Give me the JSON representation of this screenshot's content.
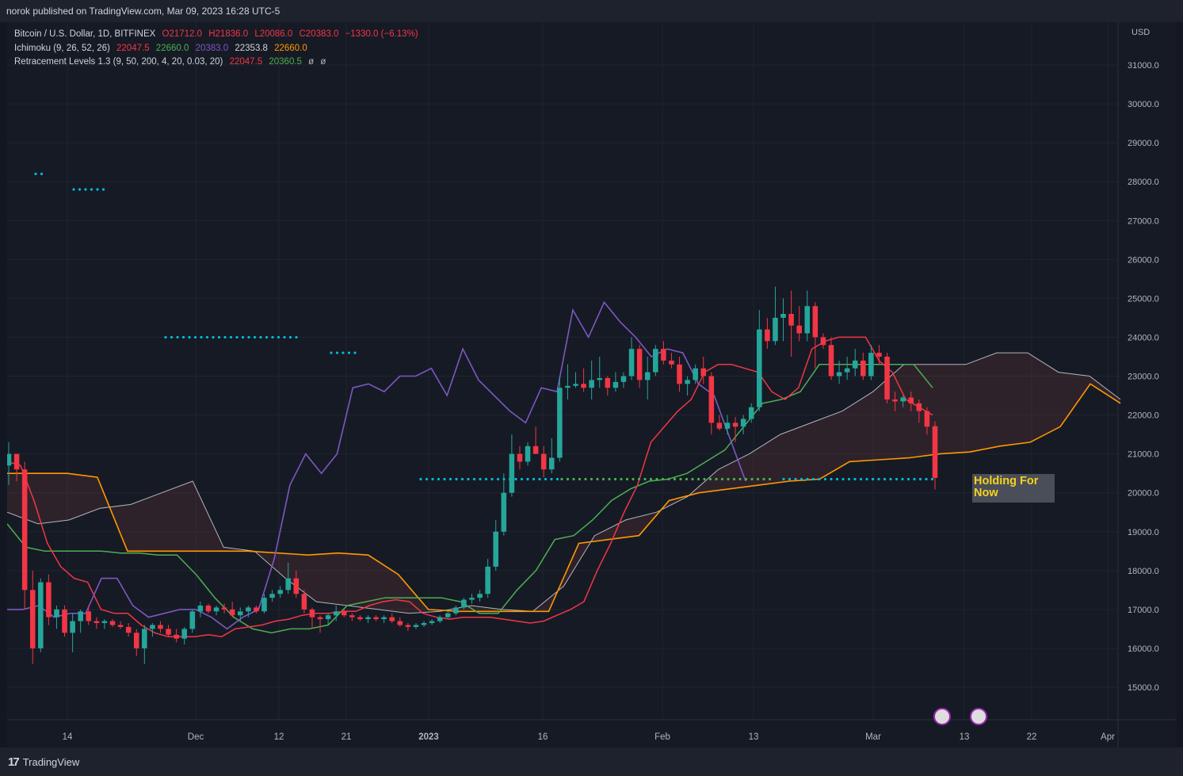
{
  "header": {
    "published_line": "norok published on TradingView.com, Mar 09, 2023 16:28 UTC-5"
  },
  "legend": {
    "symbol": "Bitcoin / U.S. Dollar, 1D, BITFINEX",
    "open": "O21712.0",
    "high": "H21836.0",
    "low": "L20086.0",
    "close": "C20383.0",
    "change": "−1330.0 (−6.13%)",
    "ichimoku_label": "Ichimoku (9, 26, 52, 26)",
    "ichimoku_v1": "22047.5",
    "ichimoku_v2": "22660.0",
    "ichimoku_v3": "20383.0",
    "ichimoku_v4": "22353.8",
    "ichimoku_v5": "22660.0",
    "retr_label": "Retracement Levels 1.3 (9, 50, 200, 4, 20, 0.03, 20)",
    "retr_v1": "22047.5",
    "retr_v2": "20360.5",
    "retr_v3": "ø",
    "retr_v4": "ø"
  },
  "annotation": {
    "text_line1": "Holding For",
    "text_line2": "Now"
  },
  "footer": {
    "brand": "TradingView"
  },
  "chart_data": {
    "type": "candlestick",
    "currency": "USD",
    "y_axis_ticks": [
      "31000.0",
      "30000.0",
      "29000.0",
      "28000.0",
      "27000.0",
      "26000.0",
      "25000.0",
      "24000.0",
      "23000.0",
      "22000.0",
      "21000.0",
      "20000.0",
      "19000.0",
      "18000.0",
      "17000.0",
      "16000.0",
      "15000.0"
    ],
    "x_axis_ticks": [
      "14",
      "Dec",
      "12",
      "21",
      "2023",
      "16",
      "Feb",
      "13",
      "Mar",
      "13",
      "22",
      "Apr"
    ],
    "ylim": [
      14300,
      31900
    ],
    "colors": {
      "up": "#26a69a",
      "down": "#f23645",
      "tenkan": "#f23645",
      "kijun": "#4caf50",
      "chikou": "#7e57c2",
      "senkou_a": "#b2b5be",
      "senkou_b": "#ff9800",
      "retracement_dots": "#00bcd4",
      "retracement_dots_green": "#4caf50"
    },
    "candles_ohlc": [
      [
        20700,
        21300,
        20200,
        21000
      ],
      [
        21000,
        21000,
        20300,
        20600
      ],
      [
        20600,
        20800,
        17000,
        17500
      ],
      [
        17500,
        18000,
        15600,
        16000
      ],
      [
        16000,
        17800,
        15900,
        17700
      ],
      [
        17700,
        17900,
        16600,
        16800
      ],
      [
        16800,
        17100,
        16500,
        17000
      ],
      [
        17000,
        17100,
        16300,
        16400
      ],
      [
        16400,
        16900,
        15900,
        16700
      ],
      [
        16700,
        17000,
        16400,
        16950
      ],
      [
        16950,
        17100,
        16600,
        16700
      ],
      [
        16700,
        16800,
        16500,
        16650
      ],
      [
        16650,
        16750,
        16500,
        16700
      ],
      [
        16700,
        16750,
        16550,
        16600
      ],
      [
        16600,
        16700,
        16500,
        16550
      ],
      [
        16550,
        16650,
        16300,
        16400
      ],
      [
        16400,
        16500,
        15800,
        16000
      ],
      [
        16000,
        16600,
        15600,
        16500
      ],
      [
        16500,
        16650,
        16300,
        16600
      ],
      [
        16600,
        16700,
        16400,
        16500
      ],
      [
        16500,
        16600,
        16300,
        16350
      ],
      [
        16350,
        16500,
        16150,
        16250
      ],
      [
        16250,
        16550,
        16100,
        16500
      ],
      [
        16500,
        17000,
        16400,
        16950
      ],
      [
        16950,
        17200,
        16800,
        17100
      ],
      [
        17100,
        17150,
        16900,
        16950
      ],
      [
        16950,
        17100,
        16850,
        17050
      ],
      [
        17050,
        17150,
        16900,
        17000
      ],
      [
        17000,
        17200,
        16800,
        16850
      ],
      [
        16850,
        17050,
        16700,
        16950
      ],
      [
        16950,
        17100,
        16800,
        17050
      ],
      [
        17050,
        17100,
        16900,
        16950
      ],
      [
        16950,
        17400,
        16900,
        17300
      ],
      [
        17300,
        17500,
        17200,
        17400
      ],
      [
        17400,
        17600,
        17300,
        17500
      ],
      [
        17500,
        18200,
        17400,
        17800
      ],
      [
        17800,
        18000,
        17300,
        17400
      ],
      [
        17400,
        17500,
        16900,
        17000
      ],
      [
        17000,
        17050,
        16500,
        16800
      ],
      [
        16800,
        16850,
        16400,
        16750
      ],
      [
        16750,
        16900,
        16600,
        16850
      ],
      [
        16850,
        17100,
        16700,
        16950
      ],
      [
        16950,
        17000,
        16800,
        16850
      ],
      [
        16850,
        16900,
        16700,
        16800
      ],
      [
        16800,
        16850,
        16700,
        16750
      ],
      [
        16750,
        16850,
        16650,
        16800
      ],
      [
        16800,
        16850,
        16700,
        16750
      ],
      [
        16750,
        16850,
        16650,
        16800
      ],
      [
        16800,
        16900,
        16650,
        16700
      ],
      [
        16700,
        16800,
        16550,
        16600
      ],
      [
        16600,
        16650,
        16450,
        16550
      ],
      [
        16550,
        16650,
        16500,
        16600
      ],
      [
        16600,
        16700,
        16550,
        16650
      ],
      [
        16650,
        16750,
        16600,
        16700
      ],
      [
        16700,
        16850,
        16650,
        16800
      ],
      [
        16800,
        16950,
        16750,
        16900
      ],
      [
        16900,
        17100,
        16850,
        17050
      ],
      [
        17050,
        17300,
        17000,
        17250
      ],
      [
        17250,
        17400,
        17150,
        17300
      ],
      [
        17300,
        17500,
        17200,
        17400
      ],
      [
        17400,
        18300,
        17300,
        18100
      ],
      [
        18100,
        19300,
        18000,
        19000
      ],
      [
        19000,
        20500,
        18900,
        20000
      ],
      [
        20000,
        21500,
        19900,
        21000
      ],
      [
        21000,
        21200,
        20600,
        20800
      ],
      [
        20800,
        21300,
        20700,
        21200
      ],
      [
        21200,
        21700,
        21000,
        21000
      ],
      [
        21000,
        21200,
        20400,
        20600
      ],
      [
        20600,
        21400,
        20500,
        20900
      ],
      [
        20900,
        23000,
        20800,
        22700
      ],
      [
        22700,
        23300,
        22400,
        22750
      ],
      [
        22750,
        23100,
        22700,
        22800
      ],
      [
        22800,
        23200,
        22600,
        22700
      ],
      [
        22700,
        23400,
        22400,
        22900
      ],
      [
        22900,
        23500,
        22700,
        22950
      ],
      [
        22950,
        23000,
        22500,
        22700
      ],
      [
        22700,
        23100,
        22600,
        22850
      ],
      [
        22850,
        23100,
        22700,
        23000
      ],
      [
        23000,
        24000,
        22900,
        23700
      ],
      [
        23700,
        23800,
        22700,
        22900
      ],
      [
        22900,
        23500,
        22400,
        23100
      ],
      [
        23100,
        23800,
        23000,
        23700
      ],
      [
        23700,
        23900,
        23300,
        23400
      ],
      [
        23400,
        23600,
        23200,
        23300
      ],
      [
        23300,
        23500,
        22600,
        22800
      ],
      [
        22800,
        23000,
        22500,
        22900
      ],
      [
        22900,
        23300,
        22800,
        23200
      ],
      [
        23200,
        23500,
        22800,
        23000
      ],
      [
        23000,
        23100,
        21500,
        21800
      ],
      [
        21800,
        22000,
        21600,
        21650
      ],
      [
        21650,
        22000,
        21500,
        21800
      ],
      [
        21800,
        21950,
        21300,
        21700
      ],
      [
        21700,
        22000,
        21500,
        21900
      ],
      [
        21900,
        22300,
        21800,
        22200
      ],
      [
        22200,
        24700,
        22100,
        24200
      ],
      [
        24200,
        24500,
        23700,
        23900
      ],
      [
        23900,
        25300,
        23800,
        24500
      ],
      [
        24500,
        25000,
        23900,
        24600
      ],
      [
        24600,
        25200,
        23500,
        24300
      ],
      [
        24300,
        24800,
        23900,
        24100
      ],
      [
        24100,
        25200,
        23900,
        24800
      ],
      [
        24800,
        24900,
        23200,
        24000
      ],
      [
        24000,
        24100,
        23700,
        23800
      ],
      [
        23800,
        24000,
        22900,
        23000
      ],
      [
        23000,
        23400,
        22800,
        23100
      ],
      [
        23100,
        23500,
        22900,
        23200
      ],
      [
        23200,
        23700,
        23000,
        23400
      ],
      [
        23400,
        23600,
        22900,
        23000
      ],
      [
        23000,
        23800,
        22900,
        23600
      ],
      [
        23600,
        23800,
        23300,
        23500
      ],
      [
        23500,
        23600,
        22300,
        22400
      ],
      [
        22400,
        22600,
        22100,
        22350
      ],
      [
        22350,
        22500,
        22200,
        22450
      ],
      [
        22450,
        22600,
        22100,
        22300
      ],
      [
        22300,
        22400,
        21800,
        22100
      ],
      [
        22100,
        22200,
        21500,
        21700
      ],
      [
        21712,
        21836,
        20086,
        20383
      ]
    ],
    "series": [
      {
        "name": "Ichimoku Tenkan",
        "values": [
          22047.5
        ]
      },
      {
        "name": "Ichimoku Kijun",
        "values": [
          22660.0
        ]
      },
      {
        "name": "Ichimoku Chikou",
        "values": [
          20383.0
        ]
      },
      {
        "name": "Ichimoku Senkou A",
        "values": [
          22353.8
        ]
      },
      {
        "name": "Ichimoku Senkou B",
        "values": [
          22660.0
        ]
      }
    ],
    "tenkan": [
      20800,
      20700,
      19800,
      18700,
      18100,
      17800,
      17700,
      17000,
      16900,
      16900,
      16600,
      16400,
      16300,
      16300,
      16300,
      16350,
      16300,
      16500,
      16550,
      16600,
      16700,
      16750,
      16850,
      16900,
      16900,
      16950,
      16950,
      17100,
      17200,
      17250,
      17200,
      16900,
      16800,
      16750,
      16800,
      16800,
      16800,
      16750,
      16700,
      16650,
      16700,
      16850,
      17000,
      17200,
      18000,
      18700,
      19500,
      20200,
      21300,
      21700,
      22100,
      22400,
      23100,
      23300,
      23300,
      23200,
      23100,
      22600,
      22400,
      22700,
      23700,
      23900,
      24000,
      24000,
      24000,
      23400,
      23100,
      22400,
      22200,
      22000
    ],
    "kijun": [
      19200,
      18600,
      18500,
      18500,
      18500,
      18500,
      18450,
      18450,
      18400,
      18400,
      17900,
      17300,
      16800,
      16500,
      16400,
      16500,
      16500,
      16600,
      17100,
      17200,
      17300,
      17300,
      17300,
      17300,
      17200,
      16900,
      16900,
      17500,
      18000,
      18800,
      18900,
      19300,
      19800,
      20100,
      20300,
      20350,
      20500,
      20800,
      21100,
      21700,
      22300,
      22400,
      22600,
      23300,
      23300,
      23300,
      23300,
      23300,
      23300,
      22700
    ],
    "chikou": [
      17000,
      17000,
      17100,
      16800,
      16900,
      16900,
      17800,
      17800,
      17100,
      16800,
      16900,
      17000,
      17000,
      16800,
      16500,
      16800,
      17000,
      18300,
      20200,
      21000,
      20500,
      21000,
      22700,
      22800,
      22600,
      23000,
      23000,
      23200,
      22500,
      23700,
      22900,
      22500,
      22100,
      21800,
      22700,
      22600,
      24700,
      24000,
      24900,
      24400,
      24000,
      23500,
      23700,
      23600,
      22800,
      22500,
      21400,
      20300
    ],
    "cloud_a": [
      19500,
      19200,
      19300,
      19600,
      19700,
      20000,
      20300,
      18600,
      18500,
      17800,
      17200,
      17100,
      17000,
      16900,
      16950,
      17100,
      17000,
      16950,
      17600,
      18900,
      19300,
      19500,
      19900,
      20600,
      21000,
      21500,
      21800,
      22100,
      22600,
      23300,
      23300,
      23300,
      23600,
      23600,
      23100,
      23000,
      22400
    ],
    "cloud_b": [
      20500,
      20500,
      20500,
      20400,
      18500,
      18500,
      18500,
      18500,
      18500,
      18450,
      18400,
      18450,
      18400,
      17900,
      17000,
      16950,
      16950,
      16950,
      16950,
      18700,
      18800,
      18900,
      19800,
      20000,
      20100,
      20200,
      20300,
      20350,
      20800,
      20850,
      20900,
      21000,
      21050,
      21200,
      21300,
      21700,
      22800,
      22300
    ],
    "retracement_levels": [
      {
        "level": 28200,
        "color": "#00bcd4"
      },
      {
        "level": 27800,
        "color": "#00bcd4"
      },
      {
        "level": 24000,
        "color": "#00bcd4"
      },
      {
        "level": 23600,
        "color": "#00bcd4"
      },
      {
        "level": 20350,
        "color": "#00bcd4"
      },
      {
        "level": 20350,
        "color": "#4caf50"
      }
    ]
  }
}
